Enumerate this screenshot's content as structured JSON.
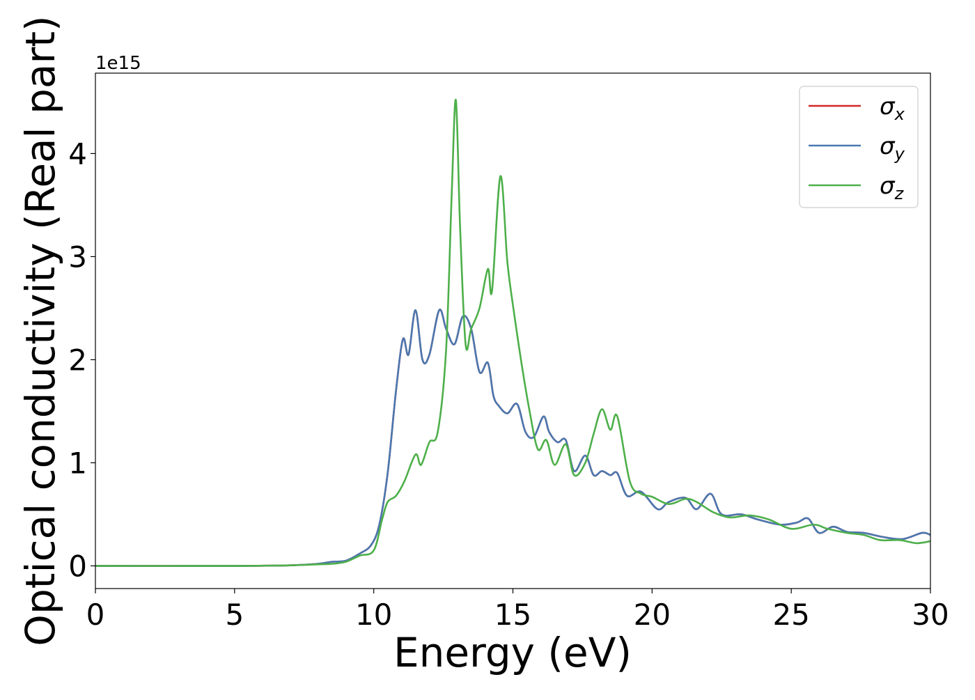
{
  "chart_data": {
    "type": "line",
    "title": "",
    "xlabel": "Energy (eV)",
    "ylabel": "Optical conductivity (Real part)",
    "y_offset_label": "1e15",
    "y_scale": 1000000000000000.0,
    "xlim": [
      0,
      30
    ],
    "ylim": [
      -0.22,
      4.78
    ],
    "xticks": [
      0,
      5,
      10,
      15,
      20,
      25,
      30
    ],
    "yticks": [
      0,
      1,
      2,
      3,
      4
    ],
    "grid": false,
    "legend_position": "top-right",
    "series": [
      {
        "name": "σ_x",
        "legend_base": "σ",
        "legend_sub": "x",
        "color": "#d62728",
        "x": [
          0,
          5,
          7,
          8,
          8.5,
          9,
          9.5,
          9.9,
          10.2,
          10.5,
          10.8,
          11.05,
          11.25,
          11.5,
          11.75,
          12,
          12.35,
          12.6,
          12.9,
          13.2,
          13.5,
          13.8,
          14.1,
          14.3,
          14.5,
          14.8,
          15.15,
          15.45,
          15.75,
          16.1,
          16.3,
          16.6,
          16.9,
          17.2,
          17.6,
          17.9,
          18.2,
          18.5,
          18.75,
          19.1,
          19.6,
          20.2,
          20.6,
          21.2,
          21.6,
          22.1,
          22.5,
          23.2,
          23.8,
          24.6,
          25.2,
          25.6,
          26,
          26.5,
          27,
          27.6,
          28.3,
          29,
          29.7,
          30
        ],
        "values": [
          0,
          0,
          0.005,
          0.02,
          0.04,
          0.05,
          0.12,
          0.2,
          0.4,
          0.9,
          1.7,
          2.2,
          2.05,
          2.48,
          2.0,
          2.05,
          2.48,
          2.3,
          2.15,
          2.42,
          2.3,
          1.88,
          1.97,
          1.65,
          1.55,
          1.48,
          1.57,
          1.3,
          1.25,
          1.45,
          1.3,
          1.2,
          1.22,
          0.92,
          1.07,
          0.88,
          0.92,
          0.88,
          0.9,
          0.68,
          0.72,
          0.55,
          0.62,
          0.66,
          0.55,
          0.7,
          0.5,
          0.5,
          0.45,
          0.4,
          0.42,
          0.46,
          0.32,
          0.38,
          0.33,
          0.32,
          0.28,
          0.26,
          0.32,
          0.3
        ]
      },
      {
        "name": "σ_y",
        "legend_base": "σ",
        "legend_sub": "y",
        "color": "#4a78b0",
        "x": [
          0,
          5,
          7,
          8,
          8.5,
          9,
          9.5,
          9.9,
          10.2,
          10.5,
          10.8,
          11.05,
          11.25,
          11.5,
          11.75,
          12,
          12.35,
          12.6,
          12.9,
          13.2,
          13.5,
          13.8,
          14.1,
          14.3,
          14.5,
          14.8,
          15.15,
          15.45,
          15.75,
          16.1,
          16.3,
          16.6,
          16.9,
          17.2,
          17.6,
          17.9,
          18.2,
          18.5,
          18.75,
          19.1,
          19.6,
          20.2,
          20.6,
          21.2,
          21.6,
          22.1,
          22.5,
          23.2,
          23.8,
          24.6,
          25.2,
          25.6,
          26,
          26.5,
          27,
          27.6,
          28.3,
          29,
          29.7,
          30
        ],
        "values": [
          0,
          0,
          0.005,
          0.02,
          0.04,
          0.05,
          0.12,
          0.2,
          0.4,
          0.9,
          1.7,
          2.2,
          2.05,
          2.48,
          2.0,
          2.05,
          2.48,
          2.3,
          2.15,
          2.42,
          2.3,
          1.88,
          1.97,
          1.65,
          1.55,
          1.48,
          1.57,
          1.3,
          1.25,
          1.45,
          1.3,
          1.2,
          1.22,
          0.92,
          1.07,
          0.88,
          0.92,
          0.88,
          0.9,
          0.68,
          0.72,
          0.55,
          0.62,
          0.66,
          0.55,
          0.7,
          0.5,
          0.5,
          0.45,
          0.4,
          0.42,
          0.46,
          0.32,
          0.38,
          0.33,
          0.32,
          0.28,
          0.26,
          0.32,
          0.3
        ]
      },
      {
        "name": "σ_z",
        "legend_base": "σ",
        "legend_sub": "z",
        "color": "#4daf4a",
        "x": [
          0,
          5,
          7,
          8,
          8.5,
          9,
          9.5,
          10,
          10.3,
          10.5,
          10.8,
          11.1,
          11.5,
          11.7,
          12,
          12.3,
          12.6,
          12.8,
          12.95,
          13.1,
          13.3,
          13.5,
          13.8,
          14.1,
          14.25,
          14.55,
          14.8,
          15,
          15.3,
          15.6,
          15.9,
          16.2,
          16.5,
          16.9,
          17.2,
          17.6,
          17.9,
          18.2,
          18.5,
          18.75,
          19.2,
          19.6,
          20,
          20.6,
          21.2,
          21.6,
          22.2,
          22.8,
          23.5,
          24.2,
          25,
          25.8,
          26.3,
          27,
          27.6,
          28.2,
          28.9,
          29.5,
          30
        ],
        "values": [
          0,
          0,
          0.005,
          0.015,
          0.02,
          0.04,
          0.1,
          0.15,
          0.45,
          0.62,
          0.68,
          0.82,
          1.08,
          0.98,
          1.2,
          1.3,
          2.1,
          3.6,
          4.52,
          3.3,
          2.15,
          2.3,
          2.5,
          2.88,
          2.67,
          3.78,
          2.95,
          2.53,
          1.98,
          1.5,
          1.13,
          1.22,
          0.98,
          1.18,
          0.88,
          1.0,
          1.28,
          1.52,
          1.32,
          1.45,
          0.82,
          0.7,
          0.67,
          0.6,
          0.65,
          0.62,
          0.52,
          0.47,
          0.49,
          0.45,
          0.36,
          0.4,
          0.36,
          0.32,
          0.3,
          0.25,
          0.25,
          0.22,
          0.24
        ]
      }
    ]
  }
}
